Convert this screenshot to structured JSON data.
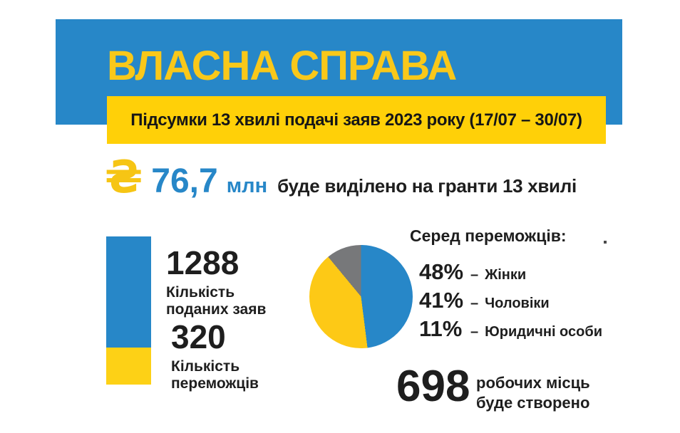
{
  "colors": {
    "blue": "#2787c8",
    "banner_yellow": "#ffd008",
    "title_yellow": "#f9c81a",
    "chart_yellow": "#fdd116",
    "pie_gray": "#77787a",
    "text_dark": "#1e1e1e"
  },
  "header": {
    "title": "ВЛАСНА СПРАВА",
    "subtitle": "Підсумки 13 хвилі подачі заяв 2023 року (17/07 – 30/07)"
  },
  "funding": {
    "currency_symbol": "₴",
    "amount": "76,7",
    "unit": "млн",
    "description": "буде виділено на гранти 13 хвилі"
  },
  "applications": {
    "value": "1288",
    "label_line1": "Кількість",
    "label_line2": "поданих заяв"
  },
  "winners": {
    "value": "320",
    "label_line1": "Кількість",
    "label_line2": "переможців"
  },
  "pie_section": {
    "heading": "Серед переможців:"
  },
  "legend": [
    {
      "percent": "48%",
      "sep": "–",
      "label": "Жінки"
    },
    {
      "percent": "41%",
      "sep": "–",
      "label": "Чоловіки"
    },
    {
      "percent": "11%",
      "sep": "–",
      "label": "Юридичні особи"
    }
  ],
  "jobs": {
    "value": "698",
    "label_line1": "робочих місць",
    "label_line2": "буде створено"
  },
  "chart_data": [
    {
      "type": "bar",
      "title": "",
      "categories": [
        "Кількість поданих заяв",
        "Кількість переможців"
      ],
      "values": [
        1288,
        320
      ],
      "colors": [
        "#2787c8",
        "#fdd116"
      ],
      "orientation": "single stacked vertical column; winners (yellow) shown as bottom portion of applications (blue)"
    },
    {
      "type": "pie",
      "title": "Серед переможців:",
      "labels": [
        "Жінки",
        "Чоловіки",
        "Юридичні особи"
      ],
      "values": [
        48,
        41,
        11
      ],
      "colors": [
        "#2787c8",
        "#fdc916",
        "#77787a"
      ],
      "start_angle": "top",
      "direction": "clockwise",
      "legend_position": "right"
    }
  ]
}
